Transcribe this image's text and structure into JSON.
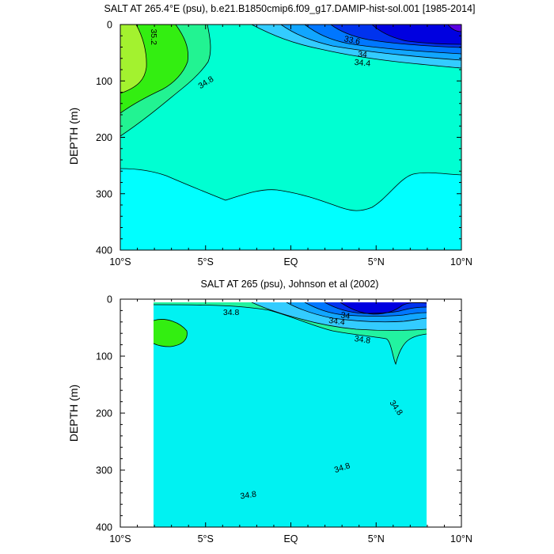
{
  "chart_data": [
    {
      "type": "contour",
      "title": "SALT AT 265.4°E (psu), b.e21.B1850cmip6.f09_g17.DAMIP-hist-sol.001 [1985-2014]",
      "ylabel": "DEPTH (m)",
      "xlabel": "",
      "x_ticks": [
        "10°S",
        "5°S",
        "EQ",
        "5°N",
        "10°N"
      ],
      "x_tick_values": [
        -10,
        -5,
        0,
        5,
        10
      ],
      "xlim": [
        -10,
        10
      ],
      "y_ticks": [
        "0",
        "100",
        "200",
        "300",
        "400"
      ],
      "y_tick_values": [
        0,
        100,
        200,
        300,
        400
      ],
      "ylim": [
        400,
        0
      ],
      "data_extent_x": [
        -10,
        10
      ],
      "contour_labels": [
        {
          "text": "35.2",
          "x": -8.0,
          "y": 22,
          "angle": 90
        },
        {
          "text": "34.8",
          "x": -5.0,
          "y": 102,
          "angle": -32
        },
        {
          "text": "33.6",
          "x": 3.6,
          "y": 27,
          "angle": 12
        },
        {
          "text": "34",
          "x": 4.2,
          "y": 52,
          "angle": 5
        },
        {
          "text": "34.4",
          "x": 4.2,
          "y": 67,
          "angle": 5
        }
      ],
      "fill_colors": {
        "s35_4": "#a3f22f",
        "s35_2": "#33ee11",
        "s35_0": "#22f392",
        "s34_8": "#00ffd2",
        "s34_6": "#00ffff",
        "s34_4": "#33ccff",
        "s34_2": "#11a6ff",
        "s34_0": "#0077ff",
        "s33_8": "#0033ee",
        "s33_6": "#0000e0",
        "s33_4": "#5b00e3"
      }
    },
    {
      "type": "contour",
      "title": "SALT AT 265 (psu), Johnson et al (2002)",
      "ylabel": "DEPTH (m)",
      "xlabel": "",
      "x_ticks": [
        "10°S",
        "5°S",
        "EQ",
        "5°N",
        "10°N"
      ],
      "x_tick_values": [
        -10,
        -5,
        0,
        5,
        10
      ],
      "xlim": [
        -10,
        10
      ],
      "y_ticks": [
        "0",
        "100",
        "200",
        "300",
        "400"
      ],
      "y_tick_values": [
        0,
        100,
        200,
        300,
        400
      ],
      "ylim": [
        400,
        0
      ],
      "data_extent_x": [
        -8,
        8
      ],
      "data_extent_y": [
        10,
        400
      ],
      "contour_labels": [
        {
          "text": "34.8",
          "x": -3.5,
          "y": 22,
          "angle": 0
        },
        {
          "text": "34",
          "x": 3.2,
          "y": 28,
          "angle": 8
        },
        {
          "text": "34.4",
          "x": 2.7,
          "y": 38,
          "angle": 8
        },
        {
          "text": "34.8",
          "x": 4.2,
          "y": 70,
          "angle": 8
        },
        {
          "text": "34.8",
          "x": 6.2,
          "y": 190,
          "angle": 55
        },
        {
          "text": "34.8",
          "x": 3.0,
          "y": 295,
          "angle": -18
        },
        {
          "text": "34.8",
          "x": -2.5,
          "y": 343,
          "angle": -8
        }
      ],
      "fill_colors": {
        "s35_2": "#33ee11",
        "s35_0": "#22f3a0",
        "s34_8": "#00fce0",
        "s34_6": "#00f2f2",
        "s34_4": "#33ccff",
        "s34_2": "#11a6ff",
        "s34_0": "#0077ff",
        "s33_8": "#0033ee",
        "s33_6": "#0000e0"
      }
    }
  ]
}
